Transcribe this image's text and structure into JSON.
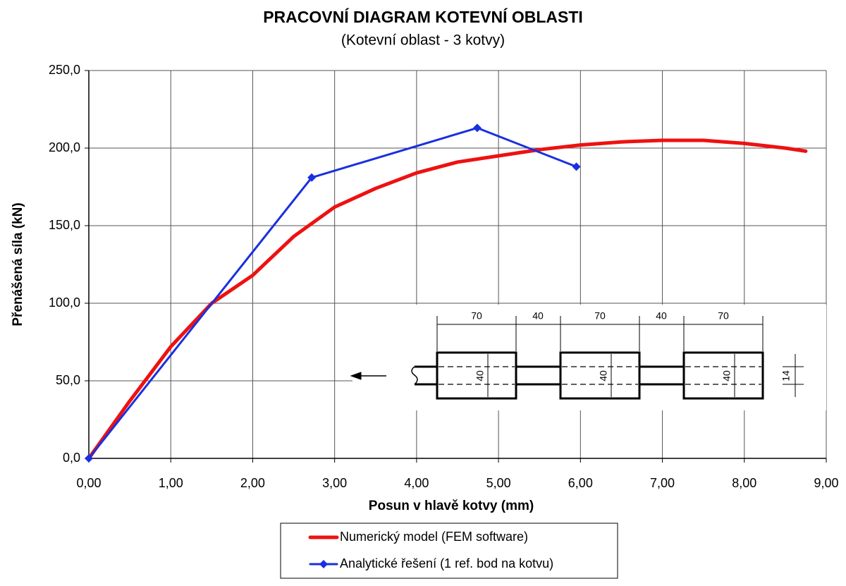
{
  "chart_data": {
    "type": "line",
    "title": "PRACOVNÍ DIAGRAM KOTEVNÍ OBLASTI",
    "subtitle": "(Kotevní oblast - 3 kotvy)",
    "xlabel": "Posun v hlavě kotvy (mm)",
    "ylabel": "Přenášená síla (kN)",
    "xlim": [
      0,
      9
    ],
    "ylim": [
      0,
      250
    ],
    "xticks": [
      {
        "value": 0,
        "label": "0,00"
      },
      {
        "value": 1,
        "label": "1,00"
      },
      {
        "value": 2,
        "label": "2,00"
      },
      {
        "value": 3,
        "label": "3,00"
      },
      {
        "value": 4,
        "label": "4,00"
      },
      {
        "value": 5,
        "label": "5,00"
      },
      {
        "value": 6,
        "label": "6,00"
      },
      {
        "value": 7,
        "label": "7,00"
      },
      {
        "value": 8,
        "label": "8,00"
      },
      {
        "value": 9,
        "label": "9,00"
      }
    ],
    "yticks": [
      {
        "value": 0,
        "label": "0,0"
      },
      {
        "value": 50,
        "label": "50,0"
      },
      {
        "value": 100,
        "label": "100,0"
      },
      {
        "value": 150,
        "label": "150,0"
      },
      {
        "value": 200,
        "label": "200,0"
      },
      {
        "value": 250,
        "label": "250,0"
      }
    ],
    "grid": true,
    "series": [
      {
        "name": "Numerický model (FEM software)",
        "color": "#ee1111",
        "marker": false,
        "x": [
          0,
          0.5,
          1.0,
          1.5,
          2.0,
          2.5,
          3.0,
          3.5,
          4.0,
          4.5,
          5.0,
          5.5,
          6.0,
          6.5,
          7.0,
          7.5,
          8.0,
          8.5,
          8.75
        ],
        "values": [
          0,
          37,
          72,
          100,
          118,
          143,
          162,
          174,
          184,
          191,
          195,
          199,
          202,
          204,
          205,
          205,
          203,
          200,
          198
        ]
      },
      {
        "name": "Analytické řešení (1 ref. bod na kotvu)",
        "color": "#1a2fe0",
        "marker": true,
        "x": [
          0,
          2.72,
          4.74,
          5.95
        ],
        "values": [
          0,
          181,
          213,
          188
        ]
      }
    ],
    "inset": {
      "dimensions": [
        "70",
        "40",
        "70",
        "40",
        "70"
      ],
      "heights": [
        "40",
        "40",
        "40"
      ],
      "rod": "14"
    }
  }
}
